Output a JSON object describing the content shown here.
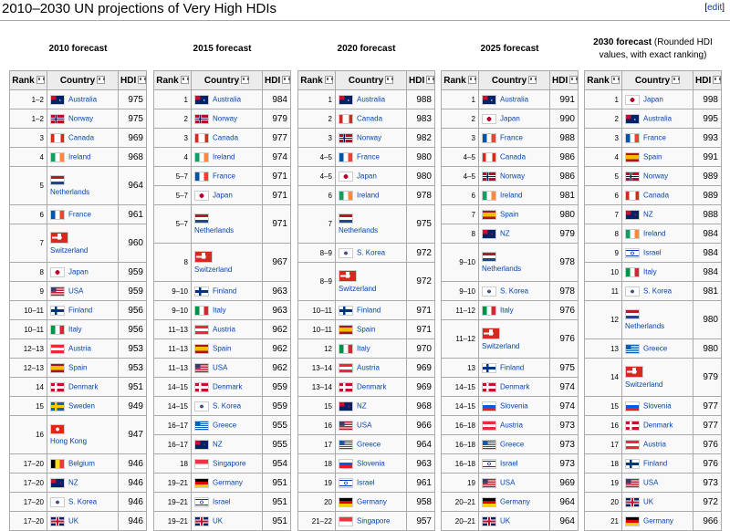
{
  "page": {
    "title": "2010–2030 UN projections of Very High HDIs",
    "edit_label": "edit",
    "edit_open": "[",
    "edit_close": "]"
  },
  "headers": {
    "rank": "Rank",
    "country": "Country",
    "hdi": "HDI"
  },
  "colors": {
    "link": "#0645ad",
    "header_bg": "#ececec",
    "cell_bg": "#f9f9f9",
    "border": "#aaaaaa"
  },
  "tables": [
    {
      "caption": "2010 forecast",
      "caption_note": "",
      "rows": [
        {
          "rank": "1–2",
          "country": "Australia",
          "hdi": "975",
          "flag": "australia",
          "tall": false
        },
        {
          "rank": "1–2",
          "country": "Norway",
          "hdi": "975",
          "flag": "norway",
          "tall": false
        },
        {
          "rank": "3",
          "country": "Canada",
          "hdi": "969",
          "flag": "canada",
          "tall": false
        },
        {
          "rank": "4",
          "country": "Ireland",
          "hdi": "968",
          "flag": "ireland",
          "tall": false
        },
        {
          "rank": "5",
          "country": "Netherlands",
          "hdi": "964",
          "flag": "netherlands",
          "tall": true
        },
        {
          "rank": "6",
          "country": "France",
          "hdi": "961",
          "flag": "france",
          "tall": false
        },
        {
          "rank": "7",
          "country": "Switzerland",
          "hdi": "960",
          "flag": "switzerland",
          "tall": true
        },
        {
          "rank": "8",
          "country": "Japan",
          "hdi": "959",
          "flag": "japan",
          "tall": false
        },
        {
          "rank": "9",
          "country": "USA",
          "hdi": "959",
          "flag": "usa",
          "tall": false
        },
        {
          "rank": "10–11",
          "country": "Finland",
          "hdi": "956",
          "flag": "finland",
          "tall": false
        },
        {
          "rank": "10–11",
          "country": "Italy",
          "hdi": "956",
          "flag": "italy",
          "tall": false
        },
        {
          "rank": "12–13",
          "country": "Austria",
          "hdi": "953",
          "flag": "austria",
          "tall": false
        },
        {
          "rank": "12–13",
          "country": "Spain",
          "hdi": "953",
          "flag": "spain",
          "tall": false
        },
        {
          "rank": "14",
          "country": "Denmark",
          "hdi": "951",
          "flag": "denmark",
          "tall": false
        },
        {
          "rank": "15",
          "country": "Sweden",
          "hdi": "949",
          "flag": "sweden",
          "tall": false
        },
        {
          "rank": "16",
          "country": "Hong Kong",
          "hdi": "947",
          "flag": "hongkong",
          "tall": true
        },
        {
          "rank": "17–20",
          "country": "Belgium",
          "hdi": "946",
          "flag": "belgium",
          "tall": false
        },
        {
          "rank": "17–20",
          "country": "NZ",
          "hdi": "946",
          "flag": "nz",
          "tall": false
        },
        {
          "rank": "17–20",
          "country": "S. Korea",
          "hdi": "946",
          "flag": "skorea",
          "tall": false
        },
        {
          "rank": "17–20",
          "country": "UK",
          "hdi": "946",
          "flag": "uk",
          "tall": false
        }
      ]
    },
    {
      "caption": "2015 forecast",
      "caption_note": "",
      "rows": [
        {
          "rank": "1",
          "country": "Australia",
          "hdi": "984",
          "flag": "australia",
          "tall": false
        },
        {
          "rank": "2",
          "country": "Norway",
          "hdi": "979",
          "flag": "norway",
          "tall": false
        },
        {
          "rank": "3",
          "country": "Canada",
          "hdi": "977",
          "flag": "canada",
          "tall": false
        },
        {
          "rank": "4",
          "country": "Ireland",
          "hdi": "974",
          "flag": "ireland",
          "tall": false
        },
        {
          "rank": "5–7",
          "country": "France",
          "hdi": "971",
          "flag": "france",
          "tall": false
        },
        {
          "rank": "5–7",
          "country": "Japan",
          "hdi": "971",
          "flag": "japan",
          "tall": false
        },
        {
          "rank": "5–7",
          "country": "Netherlands",
          "hdi": "971",
          "flag": "netherlands",
          "tall": true
        },
        {
          "rank": "8",
          "country": "Switzerland",
          "hdi": "967",
          "flag": "switzerland",
          "tall": true
        },
        {
          "rank": "9–10",
          "country": "Finland",
          "hdi": "963",
          "flag": "finland",
          "tall": false
        },
        {
          "rank": "9–10",
          "country": "Italy",
          "hdi": "963",
          "flag": "italy",
          "tall": false
        },
        {
          "rank": "11–13",
          "country": "Austria",
          "hdi": "962",
          "flag": "austria",
          "tall": false
        },
        {
          "rank": "11–13",
          "country": "Spain",
          "hdi": "962",
          "flag": "spain",
          "tall": false
        },
        {
          "rank": "11–13",
          "country": "USA",
          "hdi": "962",
          "flag": "usa",
          "tall": false
        },
        {
          "rank": "14–15",
          "country": "Denmark",
          "hdi": "959",
          "flag": "denmark",
          "tall": false
        },
        {
          "rank": "14–15",
          "country": "S. Korea",
          "hdi": "959",
          "flag": "skorea",
          "tall": false
        },
        {
          "rank": "16–17",
          "country": "Greece",
          "hdi": "955",
          "flag": "greece",
          "tall": false
        },
        {
          "rank": "16–17",
          "country": "NZ",
          "hdi": "955",
          "flag": "nz",
          "tall": false
        },
        {
          "rank": "18",
          "country": "Singapore",
          "hdi": "954",
          "flag": "singapore",
          "tall": false
        },
        {
          "rank": "19–21",
          "country": "Germany",
          "hdi": "951",
          "flag": "germany",
          "tall": false
        },
        {
          "rank": "19–21",
          "country": "Israel",
          "hdi": "951",
          "flag": "israel",
          "tall": false
        },
        {
          "rank": "19–21",
          "country": "UK",
          "hdi": "951",
          "flag": "uk",
          "tall": false
        }
      ]
    },
    {
      "caption": "2020 forecast",
      "caption_note": "",
      "rows": [
        {
          "rank": "1",
          "country": "Australia",
          "hdi": "988",
          "flag": "australia",
          "tall": false
        },
        {
          "rank": "2",
          "country": "Canada",
          "hdi": "983",
          "flag": "canada",
          "tall": false
        },
        {
          "rank": "3",
          "country": "Norway",
          "hdi": "982",
          "flag": "norway",
          "tall": false
        },
        {
          "rank": "4–5",
          "country": "France",
          "hdi": "980",
          "flag": "france",
          "tall": false
        },
        {
          "rank": "4–5",
          "country": "Japan",
          "hdi": "980",
          "flag": "japan",
          "tall": false
        },
        {
          "rank": "6",
          "country": "Ireland",
          "hdi": "978",
          "flag": "ireland",
          "tall": false
        },
        {
          "rank": "7",
          "country": "Netherlands",
          "hdi": "975",
          "flag": "netherlands",
          "tall": true
        },
        {
          "rank": "8–9",
          "country": "S. Korea",
          "hdi": "972",
          "flag": "skorea",
          "tall": false
        },
        {
          "rank": "8–9",
          "country": "Switzerland",
          "hdi": "972",
          "flag": "switzerland",
          "tall": true
        },
        {
          "rank": "10–11",
          "country": "Finland",
          "hdi": "971",
          "flag": "finland",
          "tall": false
        },
        {
          "rank": "10–11",
          "country": "Spain",
          "hdi": "971",
          "flag": "spain",
          "tall": false
        },
        {
          "rank": "12",
          "country": "Italy",
          "hdi": "970",
          "flag": "italy",
          "tall": false
        },
        {
          "rank": "13–14",
          "country": "Austria",
          "hdi": "969",
          "flag": "austria",
          "tall": false
        },
        {
          "rank": "13–14",
          "country": "Denmark",
          "hdi": "969",
          "flag": "denmark",
          "tall": false
        },
        {
          "rank": "15",
          "country": "NZ",
          "hdi": "968",
          "flag": "nz",
          "tall": false
        },
        {
          "rank": "16",
          "country": "USA",
          "hdi": "966",
          "flag": "usa",
          "tall": false
        },
        {
          "rank": "17",
          "country": "Greece",
          "hdi": "964",
          "flag": "greece",
          "tall": false
        },
        {
          "rank": "18",
          "country": "Slovenia",
          "hdi": "963",
          "flag": "slovenia",
          "tall": false
        },
        {
          "rank": "19",
          "country": "Israel",
          "hdi": "961",
          "flag": "israel",
          "tall": false
        },
        {
          "rank": "20",
          "country": "Germany",
          "hdi": "958",
          "flag": "germany",
          "tall": false
        },
        {
          "rank": "21–22",
          "country": "Singapore",
          "hdi": "957",
          "flag": "singapore",
          "tall": false
        }
      ]
    },
    {
      "caption": "2025 forecast",
      "caption_note": "",
      "rows": [
        {
          "rank": "1",
          "country": "Australia",
          "hdi": "991",
          "flag": "australia",
          "tall": false
        },
        {
          "rank": "2",
          "country": "Japan",
          "hdi": "990",
          "flag": "japan",
          "tall": false
        },
        {
          "rank": "3",
          "country": "France",
          "hdi": "988",
          "flag": "france",
          "tall": false
        },
        {
          "rank": "4–5",
          "country": "Canada",
          "hdi": "986",
          "flag": "canada",
          "tall": false
        },
        {
          "rank": "4–5",
          "country": "Norway",
          "hdi": "986",
          "flag": "norway",
          "tall": false
        },
        {
          "rank": "6",
          "country": "Ireland",
          "hdi": "981",
          "flag": "ireland",
          "tall": false
        },
        {
          "rank": "7",
          "country": "Spain",
          "hdi": "980",
          "flag": "spain",
          "tall": false
        },
        {
          "rank": "8",
          "country": "NZ",
          "hdi": "979",
          "flag": "nz",
          "tall": false
        },
        {
          "rank": "9–10",
          "country": "Netherlands",
          "hdi": "978",
          "flag": "netherlands",
          "tall": true
        },
        {
          "rank": "9–10",
          "country": "S. Korea",
          "hdi": "978",
          "flag": "skorea",
          "tall": false
        },
        {
          "rank": "11–12",
          "country": "Italy",
          "hdi": "976",
          "flag": "italy",
          "tall": false
        },
        {
          "rank": "11–12",
          "country": "Switzerland",
          "hdi": "976",
          "flag": "switzerland",
          "tall": true
        },
        {
          "rank": "13",
          "country": "Finland",
          "hdi": "975",
          "flag": "finland",
          "tall": false
        },
        {
          "rank": "14–15",
          "country": "Denmark",
          "hdi": "974",
          "flag": "denmark",
          "tall": false
        },
        {
          "rank": "14–15",
          "country": "Slovenia",
          "hdi": "974",
          "flag": "slovenia",
          "tall": false
        },
        {
          "rank": "16–18",
          "country": "Austria",
          "hdi": "973",
          "flag": "austria",
          "tall": false
        },
        {
          "rank": "16–18",
          "country": "Greece",
          "hdi": "973",
          "flag": "greece",
          "tall": false
        },
        {
          "rank": "16–18",
          "country": "Israel",
          "hdi": "973",
          "flag": "israel",
          "tall": false
        },
        {
          "rank": "19",
          "country": "USA",
          "hdi": "969",
          "flag": "usa",
          "tall": false
        },
        {
          "rank": "20–21",
          "country": "Germany",
          "hdi": "964",
          "flag": "germany",
          "tall": false
        },
        {
          "rank": "20–21",
          "country": "UK",
          "hdi": "964",
          "flag": "uk",
          "tall": false
        }
      ]
    },
    {
      "caption": "2030 forecast",
      "caption_note": "(Rounded HDI values, with exact ranking)",
      "rows": [
        {
          "rank": "1",
          "country": "Japan",
          "hdi": "998",
          "flag": "japan",
          "tall": false
        },
        {
          "rank": "2",
          "country": "Australia",
          "hdi": "995",
          "flag": "australia",
          "tall": false
        },
        {
          "rank": "3",
          "country": "France",
          "hdi": "993",
          "flag": "france",
          "tall": false
        },
        {
          "rank": "4",
          "country": "Spain",
          "hdi": "991",
          "flag": "spain",
          "tall": false
        },
        {
          "rank": "5",
          "country": "Norway",
          "hdi": "989",
          "flag": "norway",
          "tall": false
        },
        {
          "rank": "6",
          "country": "Canada",
          "hdi": "989",
          "flag": "canada",
          "tall": false
        },
        {
          "rank": "7",
          "country": "NZ",
          "hdi": "988",
          "flag": "nz",
          "tall": false
        },
        {
          "rank": "8",
          "country": "Ireland",
          "hdi": "984",
          "flag": "ireland",
          "tall": false
        },
        {
          "rank": "9",
          "country": "Israel",
          "hdi": "984",
          "flag": "israel",
          "tall": false
        },
        {
          "rank": "10",
          "country": "Italy",
          "hdi": "984",
          "flag": "italy",
          "tall": false
        },
        {
          "rank": "11",
          "country": "S. Korea",
          "hdi": "981",
          "flag": "skorea",
          "tall": false
        },
        {
          "rank": "12",
          "country": "Netherlands",
          "hdi": "980",
          "flag": "netherlands",
          "tall": true
        },
        {
          "rank": "13",
          "country": "Greece",
          "hdi": "980",
          "flag": "greece",
          "tall": false
        },
        {
          "rank": "14",
          "country": "Switzerland",
          "hdi": "979",
          "flag": "switzerland",
          "tall": true
        },
        {
          "rank": "15",
          "country": "Slovenia",
          "hdi": "977",
          "flag": "slovenia",
          "tall": false
        },
        {
          "rank": "16",
          "country": "Denmark",
          "hdi": "977",
          "flag": "denmark",
          "tall": false
        },
        {
          "rank": "17",
          "country": "Austria",
          "hdi": "976",
          "flag": "austria",
          "tall": false
        },
        {
          "rank": "18",
          "country": "Finland",
          "hdi": "976",
          "flag": "finland",
          "tall": false
        },
        {
          "rank": "19",
          "country": "USA",
          "hdi": "973",
          "flag": "usa",
          "tall": false
        },
        {
          "rank": "20",
          "country": "UK",
          "hdi": "972",
          "flag": "uk",
          "tall": false
        },
        {
          "rank": "21",
          "country": "Germany",
          "hdi": "966",
          "flag": "germany",
          "tall": false
        }
      ]
    }
  ]
}
